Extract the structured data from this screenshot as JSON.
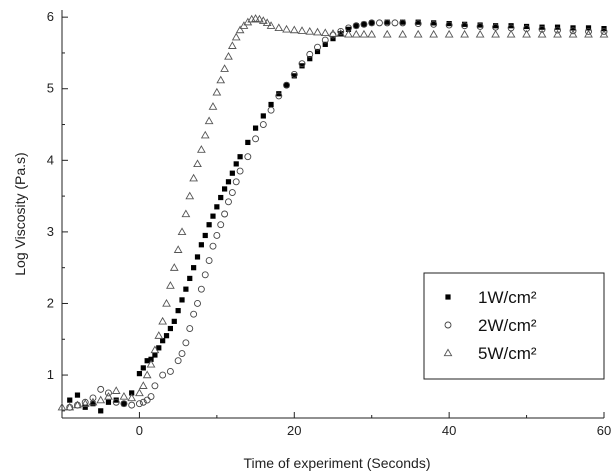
{
  "chart_data": {
    "type": "scatter",
    "title": "",
    "xlabel": "Time of experiment (Seconds)",
    "ylabel": "Log Viscosity (Pa.s)",
    "xlim": [
      -10,
      60
    ],
    "ylim": [
      0.4,
      6.1
    ],
    "xticks": [
      "0",
      "20",
      "40",
      "60"
    ],
    "yticks": [
      "1",
      "2",
      "3",
      "4",
      "5",
      "6"
    ],
    "legend_position": "bottom-right",
    "grid": false,
    "series": [
      {
        "name": "1W/cm²",
        "marker": "filled-square",
        "color": "#000000",
        "x": [
          -9,
          -8,
          -7,
          -6,
          -5,
          -4,
          -3,
          -2,
          -1,
          0,
          0.5,
          1,
          1.5,
          2,
          2.5,
          3,
          3.5,
          4,
          4.5,
          5,
          5.5,
          6,
          6.5,
          7,
          7.5,
          8,
          8.5,
          9,
          9.5,
          10,
          10.5,
          11,
          11.5,
          12,
          12.5,
          13,
          14,
          15,
          16,
          17,
          18,
          19,
          20,
          21,
          22,
          23,
          24,
          25,
          26,
          27,
          28,
          29,
          30,
          32,
          34,
          36,
          38,
          40,
          42,
          44,
          46,
          48,
          50,
          52,
          54,
          56,
          58,
          60
        ],
        "y": [
          0.65,
          0.72,
          0.55,
          0.6,
          0.5,
          0.62,
          0.65,
          0.6,
          0.75,
          1.02,
          1.1,
          1.2,
          1.22,
          1.28,
          1.38,
          1.48,
          1.55,
          1.65,
          1.75,
          1.9,
          2.05,
          2.2,
          2.35,
          2.5,
          2.65,
          2.82,
          2.95,
          3.1,
          3.22,
          3.35,
          3.48,
          3.6,
          3.7,
          3.82,
          3.95,
          4.05,
          4.25,
          4.45,
          4.62,
          4.78,
          4.93,
          5.05,
          5.18,
          5.32,
          5.42,
          5.52,
          5.62,
          5.7,
          5.77,
          5.83,
          5.88,
          5.9,
          5.92,
          5.93,
          5.93,
          5.93,
          5.92,
          5.91,
          5.9,
          5.89,
          5.88,
          5.88,
          5.87,
          5.86,
          5.86,
          5.85,
          5.85,
          5.84
        ]
      },
      {
        "name": "2W/cm²",
        "marker": "open-circle",
        "color": "#000000",
        "x": [
          -9,
          -8,
          -7,
          -6,
          -5,
          -4,
          -3,
          -2,
          -1,
          0,
          0.5,
          1,
          1.5,
          2,
          3,
          4,
          5,
          5.5,
          6,
          6.5,
          7,
          7.5,
          8,
          8.5,
          9,
          9.5,
          10,
          10.5,
          11,
          11.5,
          12,
          12.5,
          13,
          14,
          15,
          16,
          17,
          18,
          19,
          20,
          21,
          22,
          23,
          24,
          25,
          26,
          27,
          28,
          29,
          30,
          31,
          32,
          33,
          34,
          36,
          38,
          40,
          42,
          44,
          46,
          48,
          50,
          52,
          54,
          56,
          58,
          60
        ],
        "y": [
          0.55,
          0.58,
          0.62,
          0.68,
          0.8,
          0.75,
          0.62,
          0.6,
          0.58,
          0.6,
          0.62,
          0.65,
          0.7,
          0.85,
          1.0,
          1.05,
          1.2,
          1.3,
          1.45,
          1.65,
          1.85,
          2.0,
          2.2,
          2.4,
          2.6,
          2.8,
          2.95,
          3.1,
          3.25,
          3.42,
          3.55,
          3.7,
          3.85,
          4.05,
          4.3,
          4.5,
          4.7,
          4.9,
          5.05,
          5.2,
          5.35,
          5.48,
          5.58,
          5.68,
          5.75,
          5.8,
          5.85,
          5.88,
          5.9,
          5.92,
          5.92,
          5.92,
          5.92,
          5.92,
          5.91,
          5.9,
          5.89,
          5.88,
          5.87,
          5.86,
          5.85,
          5.84,
          5.83,
          5.82,
          5.81,
          5.8,
          5.8
        ]
      },
      {
        "name": "5W/cm²",
        "marker": "open-triangle",
        "color": "#000000",
        "x": [
          -10,
          -9,
          -8,
          -7,
          -6,
          -5,
          -4,
          -3,
          -2,
          -1,
          0,
          0.5,
          1,
          1.5,
          2,
          2.5,
          3,
          3.5,
          4,
          4.5,
          5,
          5.5,
          6,
          6.5,
          7,
          7.5,
          8,
          8.5,
          9,
          9.5,
          10,
          10.5,
          11,
          11.5,
          12,
          12.5,
          13,
          13.5,
          14,
          14.5,
          15,
          15.5,
          16,
          16.5,
          17,
          18,
          19,
          20,
          21,
          22,
          23,
          24,
          25,
          26,
          27,
          28,
          29,
          30,
          32,
          34,
          36,
          38,
          40,
          42,
          44,
          46,
          48,
          50,
          52,
          54,
          56,
          58,
          60
        ],
        "y": [
          0.55,
          0.55,
          0.58,
          0.6,
          0.62,
          0.65,
          0.7,
          0.78,
          0.7,
          0.68,
          0.75,
          0.85,
          1.0,
          1.15,
          1.35,
          1.55,
          1.75,
          2.0,
          2.25,
          2.5,
          2.75,
          3.0,
          3.25,
          3.5,
          3.75,
          3.95,
          4.15,
          4.35,
          4.55,
          4.75,
          4.95,
          5.12,
          5.28,
          5.45,
          5.6,
          5.72,
          5.82,
          5.88,
          5.93,
          5.97,
          5.98,
          5.97,
          5.95,
          5.92,
          5.88,
          5.85,
          5.83,
          5.82,
          5.81,
          5.8,
          5.79,
          5.78,
          5.77,
          5.77,
          5.76,
          5.76,
          5.76,
          5.76,
          5.76,
          5.76,
          5.76,
          5.76,
          5.76,
          5.76,
          5.76,
          5.76,
          5.76,
          5.76,
          5.76,
          5.76,
          5.76,
          5.76,
          5.76
        ]
      }
    ]
  }
}
